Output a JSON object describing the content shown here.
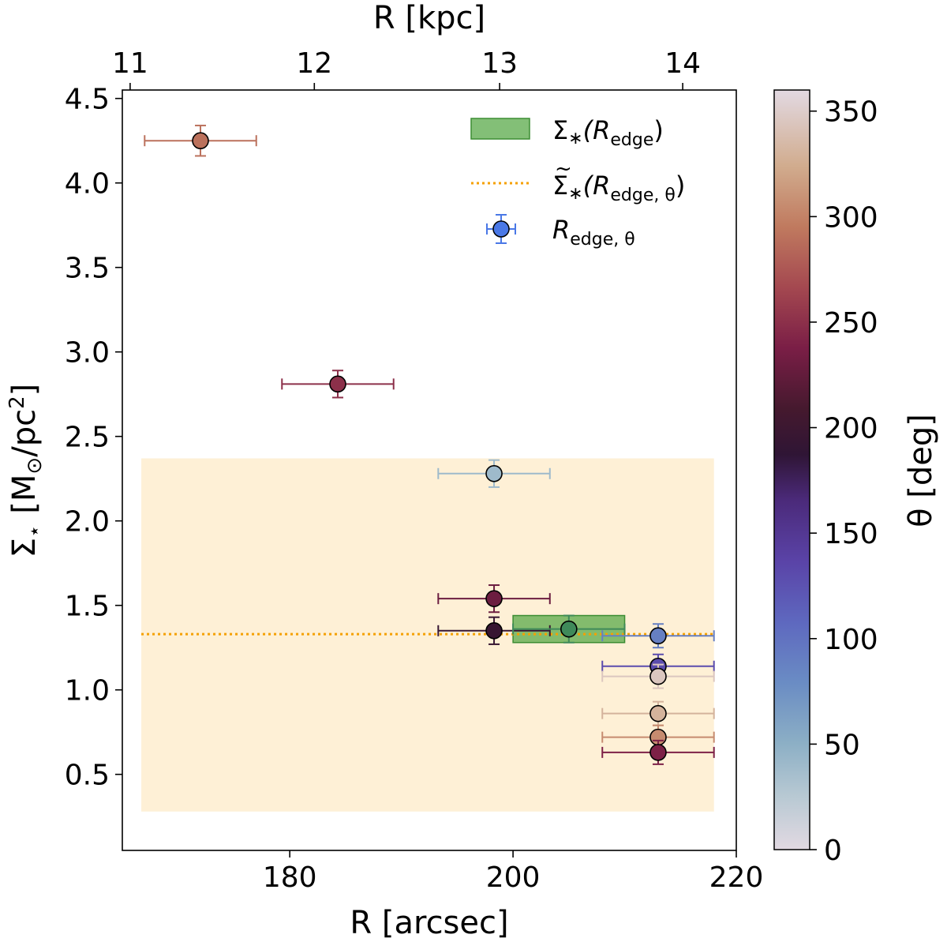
{
  "chart_data": {
    "type": "scatter",
    "xlabel": "R [arcsec]",
    "x2label": "R [kpc]",
    "ylabel_main": "Σ",
    "ylabel_sub": "⋆",
    "ylabel_unit": "[M",
    "ylabel_unit_sub": "⊙",
    "ylabel_unit_tail": "/pc",
    "ylabel_unit_sup": "2",
    "ylabel_close": "]",
    "xlim": [
      165,
      220
    ],
    "ylim": [
      0.05,
      4.55
    ],
    "x_ticks": [
      "180",
      "200",
      "220"
    ],
    "x_tick_values": [
      180,
      200,
      220
    ],
    "y_ticks": [
      "0.5",
      "1.0",
      "1.5",
      "2.0",
      "2.5",
      "3.0",
      "3.5",
      "4.0",
      "4.5"
    ],
    "y_tick_values": [
      0.5,
      1.0,
      1.5,
      2.0,
      2.5,
      3.0,
      3.5,
      4.0,
      4.5
    ],
    "x2_ticks": [
      "11",
      "12",
      "13",
      "14"
    ],
    "x2_tick_values_arcsec": [
      165.7,
      182.2,
      198.8,
      215.2
    ],
    "colorbar": {
      "label": "θ [deg]",
      "ticks": [
        "0",
        "50",
        "100",
        "150",
        "200",
        "250",
        "300",
        "350"
      ],
      "tick_values": [
        0,
        50,
        100,
        150,
        200,
        250,
        300,
        350
      ],
      "range": [
        0,
        360
      ]
    },
    "shaded_band": {
      "x": [
        166.7,
        218.0
      ],
      "y": [
        0.28,
        2.37
      ],
      "color": "#fdebc8"
    },
    "median_line": {
      "y": 1.33,
      "x_start": 166.7,
      "x_end": 218.0,
      "color": "#f5a000"
    },
    "edge_box": {
      "x": [
        200.0,
        210.0
      ],
      "y": [
        1.28,
        1.44
      ],
      "color": "#5aaa4a"
    },
    "edge_point": {
      "x": 205.0,
      "y": 1.36,
      "xerr": 5.0,
      "yerr": 0.08
    },
    "points": [
      {
        "x": 172.0,
        "y": 4.25,
        "xerr": 5.0,
        "yerr": 0.09,
        "theta": 290
      },
      {
        "x": 184.3,
        "y": 2.81,
        "xerr": 5.0,
        "yerr": 0.08,
        "theta": 250
      },
      {
        "x": 198.3,
        "y": 2.28,
        "xerr": 5.0,
        "yerr": 0.08,
        "theta": 40
      },
      {
        "x": 198.3,
        "y": 1.54,
        "xerr": 5.0,
        "yerr": 0.08,
        "theta": 230
      },
      {
        "x": 198.3,
        "y": 1.35,
        "xerr": 5.0,
        "yerr": 0.08,
        "theta": 195
      },
      {
        "x": 213.0,
        "y": 1.32,
        "xerr": 5.0,
        "yerr": 0.07,
        "theta": 90
      },
      {
        "x": 213.0,
        "y": 1.14,
        "xerr": 5.0,
        "yerr": 0.07,
        "theta": 130
      },
      {
        "x": 213.0,
        "y": 1.08,
        "xerr": 5.0,
        "yerr": 0.07,
        "theta": 345
      },
      {
        "x": 213.0,
        "y": 0.86,
        "xerr": 5.0,
        "yerr": 0.07,
        "theta": 330
      },
      {
        "x": 213.0,
        "y": 0.72,
        "xerr": 5.0,
        "yerr": 0.07,
        "theta": 305
      },
      {
        "x": 213.0,
        "y": 0.63,
        "xerr": 5.0,
        "yerr": 0.07,
        "theta": 240
      }
    ],
    "legend": {
      "position": "top-right",
      "entries": [
        {
          "kind": "box",
          "prefix": "Σ",
          "prefix_sub": "∗",
          "open": "(R",
          "sub": "edge",
          "close": ")",
          "tilde": false
        },
        {
          "kind": "line",
          "prefix": "Σ",
          "prefix_sub": "∗",
          "open": "(R",
          "sub": "edge, θ",
          "close": ")",
          "tilde": true
        },
        {
          "kind": "point",
          "prefix": "",
          "prefix_sub": "",
          "open": "R",
          "sub": "edge, θ",
          "close": "",
          "tilde": false
        }
      ]
    },
    "colors": {
      "marker_edge": "#000000",
      "edge_point_face": "#3f8a5a",
      "legend_point": "#4a78e6"
    }
  }
}
